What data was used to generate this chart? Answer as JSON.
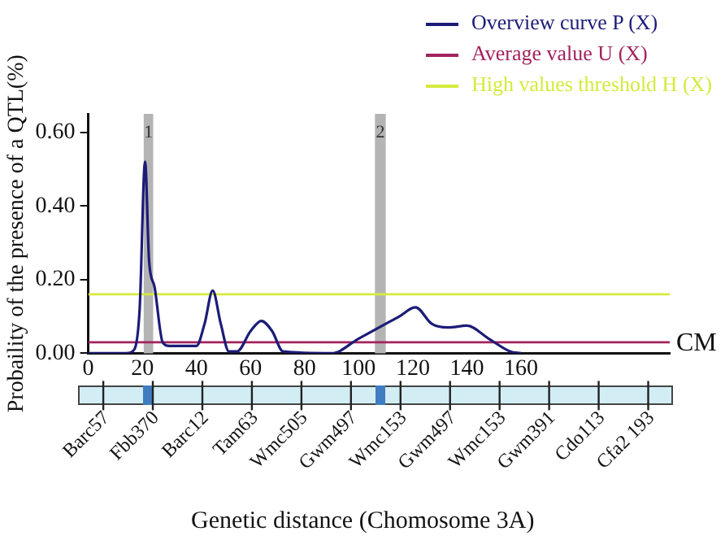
{
  "chart_data": {
    "type": "line",
    "ylabel": "Probaility of the presence of a QTL(%)",
    "x": [
      0,
      14,
      17,
      19,
      21,
      22.5,
      24.5,
      27.5,
      30,
      40,
      43,
      46,
      49,
      52,
      55,
      60,
      64,
      68,
      72,
      90,
      100,
      110,
      115,
      121,
      127,
      133,
      140,
      148,
      156,
      160
    ],
    "series": [
      {
        "name": "Overview curve P (X)",
        "color": "#1c1c78",
        "values": [
          0,
          0,
          0.01,
          0.12,
          0.52,
          0.25,
          0.18,
          0.03,
          0.02,
          0.02,
          0.08,
          0.17,
          0.08,
          0.005,
          0.005,
          0.06,
          0.088,
          0.06,
          0.005,
          0,
          0.04,
          0.08,
          0.1,
          0.125,
          0.08,
          0.07,
          0.075,
          0.04,
          0.005,
          0
        ]
      }
    ],
    "xlim": [
      0,
      215
    ],
    "xticks": [
      0,
      20,
      40,
      60,
      80,
      100,
      120,
      140,
      160
    ],
    "ylim": [
      0,
      0.65
    ],
    "yticks": [
      {
        "value": 0,
        "label": "0.00"
      },
      {
        "value": 0.2,
        "label": "0.20"
      },
      {
        "value": 0.4,
        "label": "0.40"
      },
      {
        "value": 0.6,
        "label": "0.60"
      }
    ],
    "ref_lines": [
      {
        "axis": "y",
        "value": 0.03,
        "label": "Average value U (X)",
        "color": "#a3235e"
      },
      {
        "axis": "y",
        "value": 0.16,
        "label": "High values threshold H (X)",
        "color": "#d6ea3c"
      }
    ],
    "bands": [
      {
        "axis": "x",
        "from": 20.5,
        "to": 24,
        "label": "1",
        "color": "#b4b4b4"
      },
      {
        "axis": "x",
        "from": 106,
        "to": 110,
        "label": "2",
        "color": "#b4b4b4"
      }
    ],
    "annotations": [
      "CM",
      "Barc57",
      "Fbb370",
      "Barc12",
      "Tam63",
      "Wmc505",
      "Gwm497",
      "Wmc153",
      "Gwm497",
      "Wmc153",
      "Gwm391",
      "Cdo113",
      "Cfa2 193",
      "Genetic distance (Chomosome 3A)"
    ],
    "legend": "top right",
    "grid": false,
    "marker": "none",
    "line_style": "solid"
  }
}
